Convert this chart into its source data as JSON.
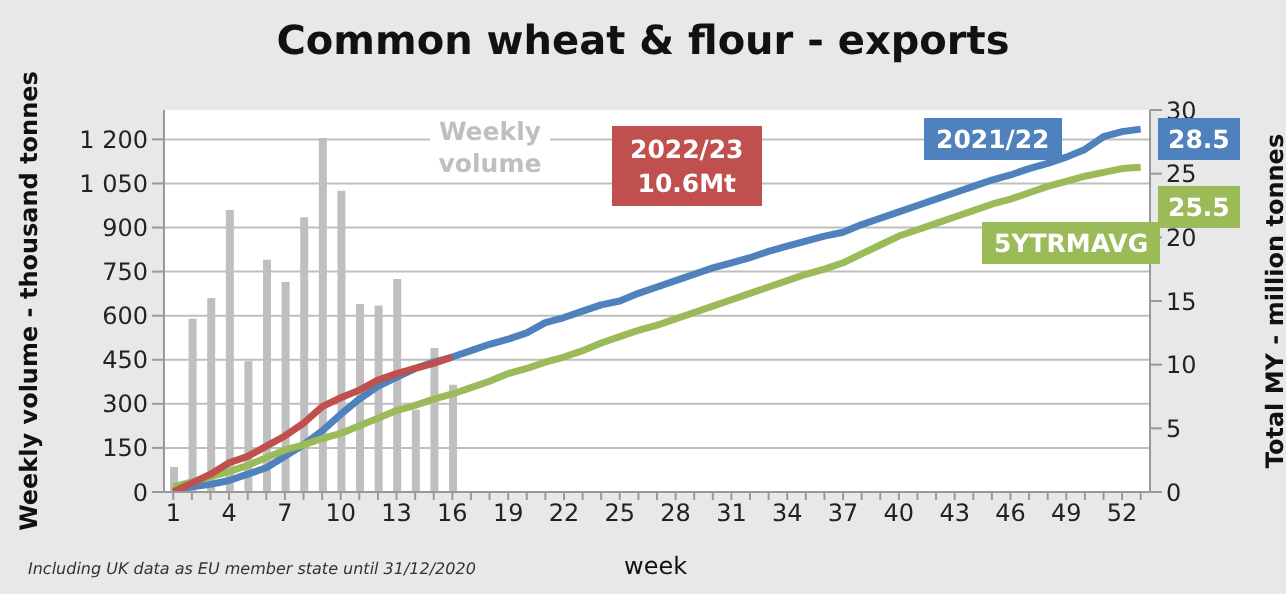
{
  "chart_data": {
    "type": "line",
    "title": "Common wheat & flour - exports",
    "xlabel": "week",
    "ylabel": "Weekly volume - thousand tonnes",
    "y2label": "Total MY - million tonnes",
    "categories": [
      "1",
      null,
      null,
      "4",
      null,
      null,
      "7",
      null,
      null,
      "10",
      null,
      null,
      "13",
      null,
      null,
      "16",
      null,
      null,
      "19",
      null,
      null,
      "22",
      null,
      null,
      "25",
      null,
      null,
      "28",
      null,
      null,
      "31",
      null,
      null,
      "34",
      null,
      null,
      "37",
      null,
      null,
      "40",
      null,
      null,
      "43",
      null,
      null,
      "46",
      null,
      null,
      "49",
      null,
      null,
      "52",
      null
    ],
    "series": [
      {
        "name": "Weekly volume",
        "type": "bar",
        "color": "#bfbfbf",
        "values": [
          85,
          590,
          660,
          960,
          445,
          790,
          715,
          935,
          1205,
          1025,
          640,
          635,
          725,
          280,
          490,
          365,
          null,
          null,
          null,
          null,
          null,
          null,
          null,
          null,
          null,
          null,
          null,
          null,
          null,
          null,
          null,
          null,
          null,
          null,
          null,
          null,
          null,
          null,
          null,
          null,
          null,
          null,
          null,
          null,
          null,
          null,
          null,
          null,
          null,
          null,
          null,
          null,
          null
        ]
      },
      {
        "name": "2021/22",
        "axis": "y2",
        "color": "#4f81bd",
        "values": [
          0.2,
          0.4,
          0.6,
          0.9,
          1.4,
          1.9,
          2.8,
          3.7,
          4.8,
          6.1,
          7.3,
          8.3,
          9.0,
          9.7,
          10.2,
          10.6,
          11.1,
          11.6,
          12.0,
          12.5,
          13.3,
          13.7,
          14.2,
          14.7,
          15.0,
          15.6,
          16.1,
          16.6,
          17.1,
          17.6,
          18.0,
          18.4,
          18.9,
          19.3,
          19.7,
          20.1,
          20.4,
          21.0,
          21.5,
          22.0,
          22.5,
          23.0,
          23.5,
          24.0,
          24.5,
          24.9,
          25.4,
          25.8,
          26.3,
          26.9,
          27.9,
          28.3,
          28.5
        ]
      },
      {
        "name": "5YTRMAVG",
        "axis": "y2",
        "color": "#9bbb59",
        "values": [
          0.4,
          0.8,
          1.2,
          1.6,
          2.1,
          2.7,
          3.3,
          3.7,
          4.2,
          4.6,
          5.2,
          5.8,
          6.4,
          6.8,
          7.3,
          7.7,
          8.2,
          8.7,
          9.3,
          9.7,
          10.2,
          10.6,
          11.1,
          11.7,
          12.2,
          12.7,
          13.1,
          13.6,
          14.1,
          14.6,
          15.1,
          15.6,
          16.1,
          16.6,
          17.1,
          17.5,
          18.0,
          18.7,
          19.4,
          20.1,
          20.6,
          21.1,
          21.6,
          22.1,
          22.6,
          23.0,
          23.5,
          24.0,
          24.4,
          24.8,
          25.1,
          25.4,
          25.5
        ]
      },
      {
        "name": "2022/23",
        "axis": "y2",
        "color": "#c0504d",
        "values": [
          0,
          0.7,
          1.4,
          2.3,
          2.8,
          3.6,
          4.4,
          5.4,
          6.7,
          7.4,
          8.0,
          8.8,
          9.3,
          9.7,
          10.1,
          10.6,
          null,
          null,
          null,
          null,
          null,
          null,
          null,
          null,
          null,
          null,
          null,
          null,
          null,
          null,
          null,
          null,
          null,
          null,
          null,
          null,
          null,
          null,
          null,
          null,
          null,
          null,
          null,
          null,
          null,
          null,
          null,
          null,
          null,
          null,
          null,
          null,
          null
        ]
      }
    ],
    "ylim": [
      0,
      1300
    ],
    "yticks": [
      0,
      150,
      300,
      450,
      600,
      750,
      900,
      {
        "value": 1050,
        "label": "1 050"
      },
      {
        "value": 1200,
        "label": "1 200"
      }
    ],
    "y2lim": [
      0,
      30
    ],
    "y2ticks": [
      0,
      5,
      10,
      15,
      20,
      25,
      30
    ],
    "grid": "y",
    "legend": false,
    "marker": "none",
    "line_style": "solid",
    "annotations": [
      "10.6Mt",
      "28.5",
      "25.5",
      "Including UK data as EU member state until 31/12/2020"
    ]
  }
}
